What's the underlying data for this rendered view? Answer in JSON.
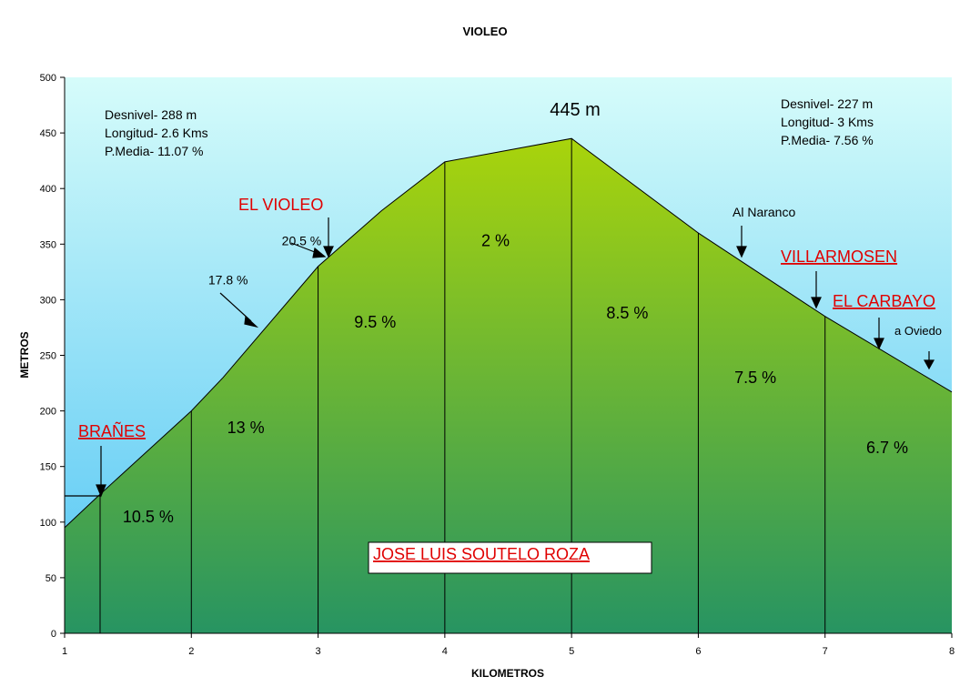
{
  "chart_data": {
    "type": "area",
    "title": "VIOLEO",
    "xlabel": "KILOMETROS",
    "ylabel": "METROS",
    "xlim": [
      1,
      8
    ],
    "ylim": [
      0,
      500
    ],
    "x_ticks": [
      "1",
      "2",
      "3",
      "4",
      "5",
      "6",
      "7",
      "8"
    ],
    "y_ticks": [
      "0",
      "50",
      "100",
      "150",
      "200",
      "250",
      "300",
      "350",
      "400",
      "450",
      "500"
    ],
    "grid": false,
    "series": [
      {
        "x": [
          1.0,
          1.27,
          2.0,
          2.25,
          3.0,
          3.5,
          4.0,
          5.0,
          6.0,
          7.0,
          8.0
        ],
        "y": [
          95,
          124,
          200,
          230,
          330,
          380,
          424,
          445,
          360,
          285,
          217
        ]
      }
    ],
    "segment_dividers_km": [
      1.28,
      2.0,
      3.0,
      4.0,
      5.0,
      6.0,
      7.0
    ],
    "segment_labels": [
      {
        "text": "10.5 %",
        "x": 1.66,
        "y": 100
      },
      {
        "text": "13 %",
        "x": 2.43,
        "y": 180
      },
      {
        "text": "9.5 %",
        "x": 3.45,
        "y": 275
      },
      {
        "text": "2 %",
        "x": 4.4,
        "y": 348
      },
      {
        "text": "8.5 %",
        "x": 5.44,
        "y": 283
      },
      {
        "text": "7.5 %",
        "x": 6.45,
        "y": 225
      },
      {
        "text": "6.7 %",
        "x": 7.49,
        "y": 162
      }
    ],
    "slope_labels": [
      {
        "text": "20.5 %",
        "x": 2.87,
        "y": 349
      },
      {
        "text": "17.8 %",
        "x": 2.29,
        "y": 314
      }
    ],
    "info_left": [
      "Desnivel- 288 m",
      "Longitud- 2.6 Kms",
      "P.Media- 11.07 %"
    ],
    "info_right": [
      "Desnivel- 227 m",
      "Longitud- 3 Kms",
      "P.Media- 7.56 %"
    ],
    "peak_label": "445 m",
    "places": [
      {
        "text": "BRAÑES",
        "underline": true
      },
      {
        "text": "EL VIOLEO",
        "underline": false
      },
      {
        "text": "VILLARMOSEN",
        "underline": true
      },
      {
        "text": "EL CARBAYO",
        "underline": true
      }
    ],
    "notes": [
      "Al Naranco",
      "a Oviedo"
    ],
    "author_box": "JOSE LUIS SOUTELO ROZA",
    "colors": {
      "sky_top": "#d6fcfa",
      "sky_bottom": "#4fc4f4",
      "fill_top": "#a9d40b",
      "fill_bottom": "#279462",
      "place_text": "#e00000",
      "line": "#000000"
    }
  }
}
